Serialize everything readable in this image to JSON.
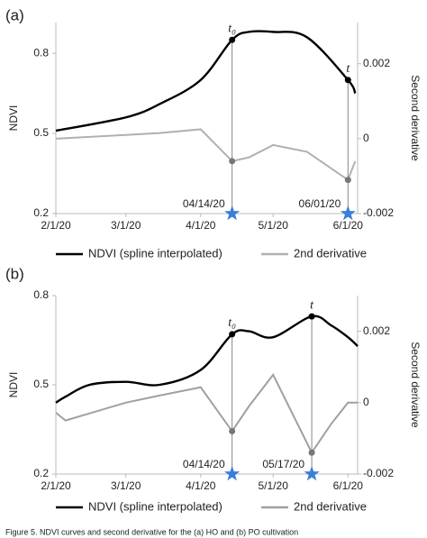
{
  "chart_data": [
    {
      "type": "line",
      "panel_label": "(a)",
      "ylabel": "NDVI",
      "y2label": "Second derivative",
      "x": [
        "2020-02-01",
        "2020-03-01",
        "2020-03-15",
        "2020-04-01",
        "2020-04-14",
        "2020-04-21",
        "2020-05-01",
        "2020-05-15",
        "2020-06-01",
        "2020-06-04"
      ],
      "series": [
        {
          "name": "NDVI (spline interpolated)",
          "color": "#000000",
          "values": [
            0.51,
            0.56,
            0.61,
            0.7,
            0.85,
            0.88,
            0.88,
            0.86,
            0.7,
            0.65
          ]
        },
        {
          "name": "2nd derivative",
          "color": "#b0b0b0",
          "axis": "y2",
          "values": [
            0,
            0.0001,
            0.00015,
            0.00025,
            -0.0006,
            -0.0005,
            -0.00017,
            -0.00035,
            -0.0011,
            -0.0006
          ]
        }
      ],
      "events": [
        {
          "x": "2020-04-14",
          "label": "t₀",
          "date_label": "04/14/20"
        },
        {
          "x": "2020-06-01",
          "label": "t",
          "date_label": "06/01/20"
        }
      ],
      "xlim": [
        "2020-02-01",
        "2020-06-05"
      ],
      "xticks": [
        {
          "value": "2020-02-01",
          "label": "2/1/20"
        },
        {
          "value": "2020-03-01",
          "label": "3/1/20"
        },
        {
          "value": "2020-04-01",
          "label": "4/1/20"
        },
        {
          "value": "2020-05-01",
          "label": "5/1/20"
        },
        {
          "value": "2020-06-01",
          "label": "6/1/20"
        }
      ],
      "ylim": [
        0.2,
        0.915
      ],
      "yticks": [
        0.2,
        0.5,
        0.8
      ],
      "y2lim": [
        -0.002,
        0.0031
      ],
      "y2ticks": [
        -0.002,
        0,
        0.002
      ],
      "event_color": "#3b7dd8"
    },
    {
      "type": "line",
      "panel_label": "(b)",
      "ylabel": "NDVI",
      "y2label": "Second derivative",
      "x": [
        "2020-02-01",
        "2020-02-05",
        "2020-02-15",
        "2020-03-01",
        "2020-03-15",
        "2020-04-01",
        "2020-04-14",
        "2020-04-21",
        "2020-05-01",
        "2020-05-17",
        "2020-05-25",
        "2020-06-01",
        "2020-06-05"
      ],
      "series": [
        {
          "name": "NDVI (spline interpolated)",
          "color": "#000000",
          "values": [
            0.44,
            0.46,
            0.5,
            0.51,
            0.5,
            0.55,
            0.67,
            0.68,
            0.66,
            0.73,
            0.7,
            0.66,
            0.63
          ]
        },
        {
          "name": "2nd derivative",
          "color": "#a0a0a0",
          "axis": "y2",
          "values": [
            -0.00028,
            -0.0005,
            -0.0003,
            0,
            0.0002,
            0.00043,
            -0.0008,
            -0.0001,
            0.00078,
            -0.0014,
            -0.0006,
            0,
            0
          ]
        }
      ],
      "events": [
        {
          "x": "2020-04-14",
          "label": "t₀",
          "date_label": "04/14/20"
        },
        {
          "x": "2020-05-17",
          "label": "t",
          "date_label": "05/17/20"
        }
      ],
      "xlim": [
        "2020-02-01",
        "2020-06-05"
      ],
      "xticks": [
        {
          "value": "2020-02-01",
          "label": "2/1/20"
        },
        {
          "value": "2020-03-01",
          "label": "3/1/20"
        },
        {
          "value": "2020-04-01",
          "label": "4/1/20"
        },
        {
          "value": "2020-05-01",
          "label": "5/1/20"
        },
        {
          "value": "2020-06-01",
          "label": "6/1/20"
        }
      ],
      "ylim": [
        0.2,
        0.8
      ],
      "yticks": [
        0.2,
        0.5,
        0.8
      ],
      "y2lim": [
        -0.002,
        0.003
      ],
      "y2ticks": [
        -0.002,
        0,
        0.002
      ],
      "event_color": "#3b7dd8"
    }
  ],
  "caption": "Figure 5. NDVI curves and second derivative for the (a) HO and (b) PO cultivation"
}
